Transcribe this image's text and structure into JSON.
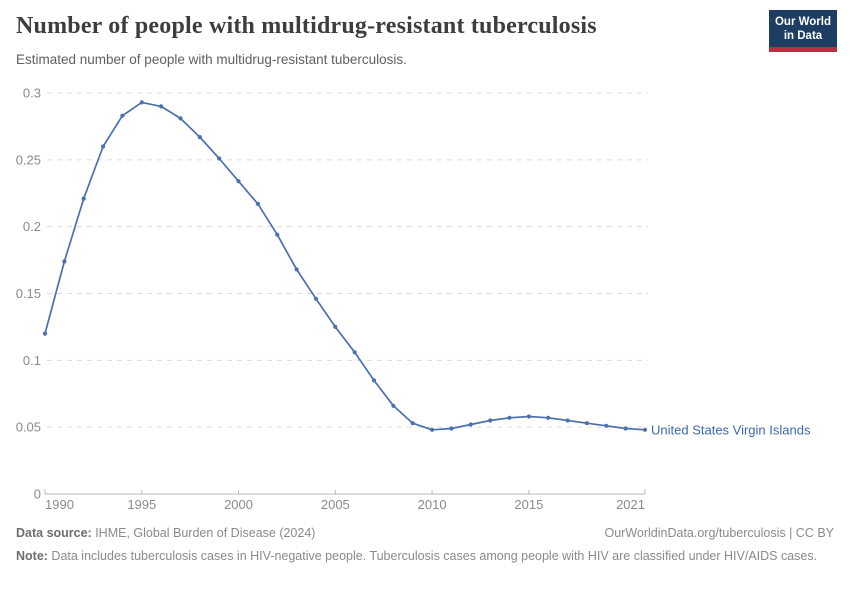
{
  "header": {
    "title": "Number of people with multidrug-resistant tuberculosis",
    "subtitle": "Estimated number of people with multidrug-resistant tuberculosis."
  },
  "logo": {
    "line1": "Our World",
    "line2": "in Data",
    "bg_color": "#1d3d63",
    "accent_color": "#b63141"
  },
  "chart_data": {
    "type": "line",
    "title": "Number of people with multidrug-resistant tuberculosis",
    "x": [
      1990,
      1991,
      1992,
      1993,
      1994,
      1995,
      1996,
      1997,
      1998,
      1999,
      2000,
      2001,
      2002,
      2003,
      2004,
      2005,
      2006,
      2007,
      2008,
      2009,
      2010,
      2011,
      2012,
      2013,
      2014,
      2015,
      2016,
      2017,
      2018,
      2019,
      2020,
      2021
    ],
    "series": [
      {
        "name": "United States Virgin Islands",
        "color": "#4C70AD",
        "label_color": "#3D68AE",
        "values": [
          0.12,
          0.174,
          0.221,
          0.26,
          0.283,
          0.293,
          0.29,
          0.281,
          0.267,
          0.251,
          0.234,
          0.217,
          0.194,
          0.168,
          0.146,
          0.125,
          0.106,
          0.085,
          0.066,
          0.053,
          0.048,
          0.049,
          0.052,
          0.055,
          0.057,
          0.058,
          0.057,
          0.055,
          0.053,
          0.051,
          0.049,
          0.048
        ]
      }
    ],
    "xlim": [
      1990,
      2021
    ],
    "ylim": [
      0,
      0.3
    ],
    "y_ticks": [
      0,
      0.05,
      0.1,
      0.15,
      0.2,
      0.25,
      0.3
    ],
    "x_ticks": [
      1990,
      1995,
      2000,
      2005,
      2010,
      2015,
      2021
    ],
    "grid": "horizontal-dashed",
    "legend_position": "end-of-line-label"
  },
  "footer": {
    "source_label": "Data source:",
    "source_text": " IHME, Global Burden of Disease (2024)",
    "attribution": "OurWorldinData.org/tuberculosis | CC BY",
    "note_label": "Note:",
    "note_text": " Data includes tuberculosis cases in HIV-negative people. Tuberculosis cases among people with HIV are classified under HIV/AIDS cases."
  },
  "colors": {
    "grid": "#dcdcdc",
    "axis": "#b8b8b8",
    "tick_text": "#8b8b8b",
    "title_text": "#3d3d3d",
    "subtitle_text": "#606060",
    "footer_text": "#8a8a8a"
  }
}
